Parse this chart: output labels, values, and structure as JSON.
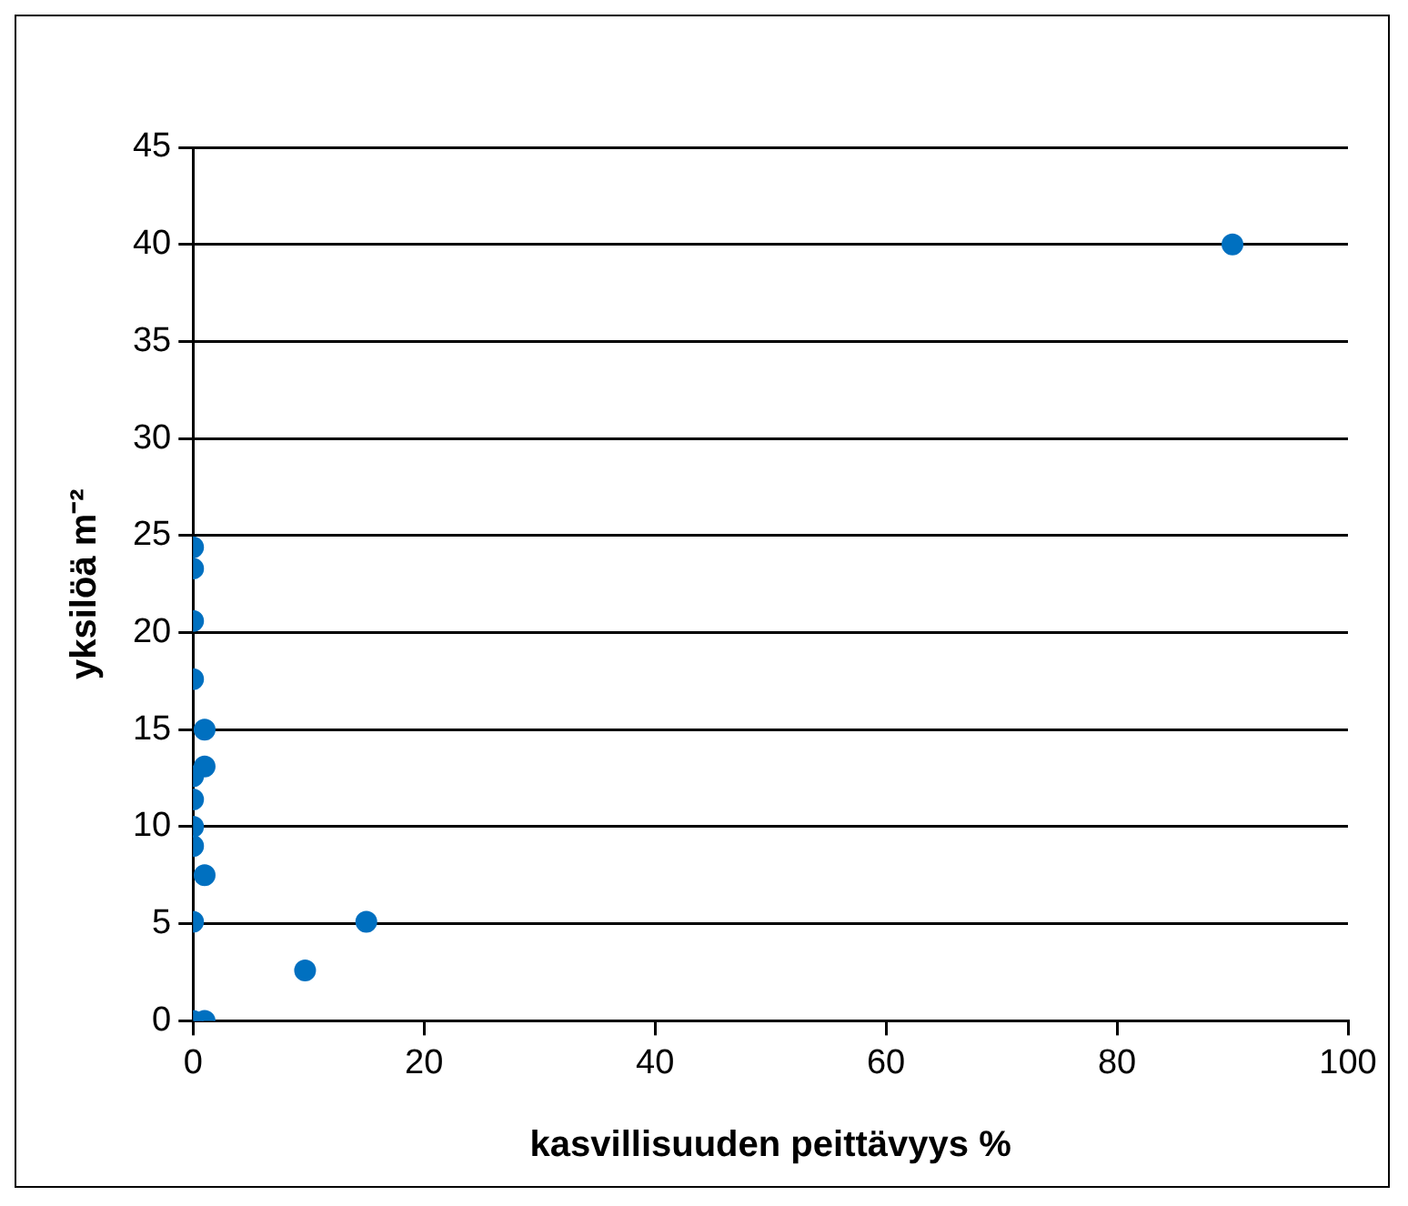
{
  "chart_data": {
    "type": "scatter",
    "xlabel": "kasvillisuuden peittävyys %",
    "ylabel": "yksilöä m⁻²",
    "x": [
      90,
      0,
      0,
      0,
      0,
      1,
      1,
      0,
      0,
      0,
      0,
      1,
      0,
      15,
      9.7,
      0,
      1
    ],
    "values": [
      40,
      24.4,
      23.3,
      20.6,
      17.6,
      15,
      13.1,
      12.6,
      11.4,
      10,
      9,
      7.5,
      5.1,
      5.1,
      2.6,
      0,
      0
    ],
    "color": "#0070c0",
    "marker": "circle",
    "grid": "y",
    "legend": false,
    "xlim": [
      0,
      100
    ],
    "xticks": [
      0,
      20,
      40,
      60,
      80,
      100
    ],
    "ylim": [
      0,
      45
    ],
    "yticks": [
      0,
      5,
      10,
      15,
      20,
      25,
      30,
      35,
      40,
      45
    ]
  }
}
